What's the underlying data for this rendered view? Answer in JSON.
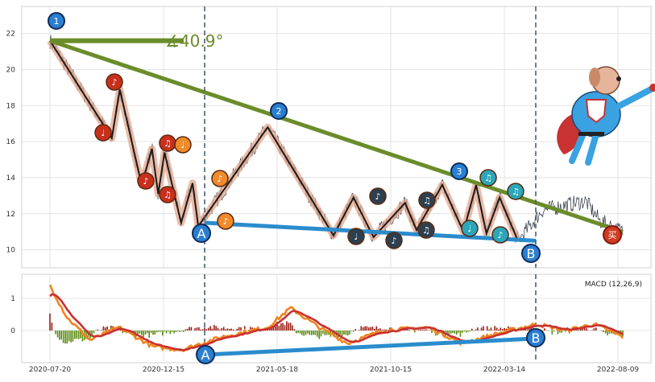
{
  "chart_data": [
    {
      "type": "line",
      "panel": "price",
      "x_ticks": [],
      "y_ticks": [
        "10",
        "12",
        "14",
        "16",
        "18",
        "20",
        "22"
      ],
      "ylim": [
        9,
        23.5
      ],
      "grid": true,
      "price_series_colors": {
        "line": "#2b3442",
        "zigzag_main": "#1a1a1a",
        "zigzag_glow": "#d4b4a0"
      },
      "zigzag_points": [
        {
          "x": 0.0,
          "y": 21.6
        },
        {
          "x": 0.108,
          "y": 16.2
        },
        {
          "x": 0.122,
          "y": 18.9
        },
        {
          "x": 0.16,
          "y": 13.6
        },
        {
          "x": 0.178,
          "y": 15.6
        },
        {
          "x": 0.189,
          "y": 13.1
        },
        {
          "x": 0.2,
          "y": 15.4
        },
        {
          "x": 0.229,
          "y": 11.5
        },
        {
          "x": 0.249,
          "y": 13.7
        },
        {
          "x": 0.259,
          "y": 11.3
        },
        {
          "x": 0.38,
          "y": 16.8
        },
        {
          "x": 0.495,
          "y": 10.8
        },
        {
          "x": 0.53,
          "y": 12.9
        },
        {
          "x": 0.565,
          "y": 10.7
        },
        {
          "x": 0.62,
          "y": 12.6
        },
        {
          "x": 0.64,
          "y": 11.1
        },
        {
          "x": 0.685,
          "y": 13.6
        },
        {
          "x": 0.722,
          "y": 11.0
        },
        {
          "x": 0.744,
          "y": 13.6
        },
        {
          "x": 0.762,
          "y": 10.9
        },
        {
          "x": 0.785,
          "y": 12.9
        },
        {
          "x": 0.817,
          "y": 10.5
        }
      ],
      "annotations": {
        "angle_label": "∡40.9°",
        "trendline_color": "#6b8c2a",
        "support_color": "#2a8ccc",
        "numbered_markers": [
          "1",
          "2",
          "3"
        ],
        "point_markers": [
          "A",
          "B"
        ],
        "note_symbols": [
          "♩",
          "♪",
          "♫"
        ],
        "buy_badge": "买",
        "note_colors": {
          "red": "#c8301c",
          "orange": "#f08a2a",
          "dark": "#2e3f4f",
          "teal": "#2aa7b8"
        },
        "vertical_dashed_at": [
          "A",
          "B"
        ]
      }
    },
    {
      "type": "line",
      "panel": "macd",
      "title": "MACD (12,26,9)",
      "x_ticks": [
        "2020-07-20",
        "2020-12-15",
        "2021-05-18",
        "2021-10-15",
        "2022-03-14",
        "2022-08-09"
      ],
      "y_ticks": [
        "0",
        "1"
      ],
      "ylim": [
        -1.0,
        1.75
      ],
      "grid": true,
      "colors": {
        "macd": "#f0841e",
        "signal": "#c83232",
        "hist_pos": "#9b1e14",
        "hist_neg": "#5a8a12",
        "divergence": "#2a8ccc"
      },
      "point_markers": [
        "A",
        "B"
      ]
    }
  ]
}
